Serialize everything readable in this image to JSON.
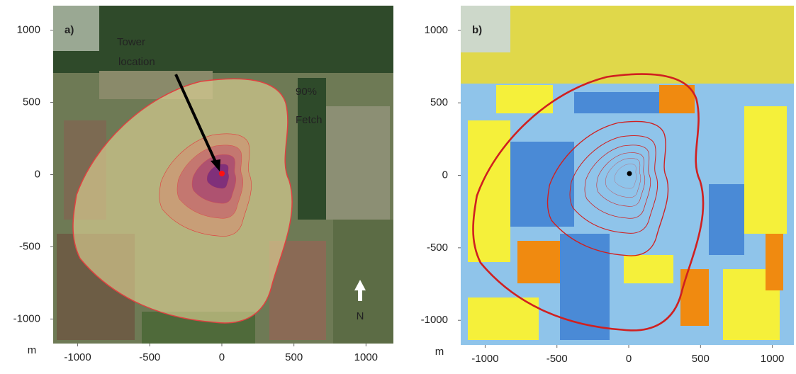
{
  "chart_data": [
    {
      "type": "map",
      "panel_label": "a)",
      "unit_label": "m",
      "xlim": [
        -1170,
        1190
      ],
      "ylim": [
        -1170,
        1170
      ],
      "xticks": [
        -1000,
        -500,
        0,
        500,
        1000
      ],
      "yticks": [
        1000,
        500,
        0,
        -500,
        -1000
      ],
      "tower_label": [
        "Tower",
        "location"
      ],
      "fetch_label": [
        "90%",
        "Fetch"
      ],
      "north_label": "N"
    },
    {
      "type": "map",
      "panel_label": "b)",
      "unit_label": "m",
      "xlim": [
        -1170,
        1150
      ],
      "ylim": [
        -1170,
        1170
      ],
      "xticks": [
        -1000,
        -500,
        0,
        500,
        1000
      ],
      "yticks": [
        1000,
        500,
        0,
        -500,
        -1000
      ]
    }
  ]
}
